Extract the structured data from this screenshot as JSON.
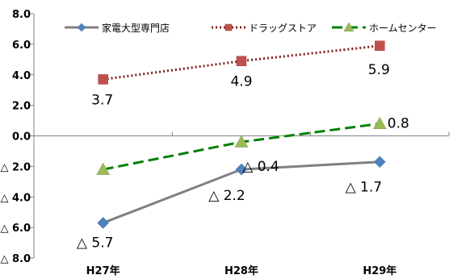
{
  "chart_data": {
    "type": "line",
    "title": "",
    "xlabel": "",
    "ylabel": "",
    "categories": [
      "H27年",
      "H28年",
      "H29年"
    ],
    "ylim": [
      -8,
      8
    ],
    "yticks": [
      8,
      6,
      4,
      2,
      0,
      -2,
      -4,
      -6,
      -8
    ],
    "ytick_labels": [
      "8.0",
      "6.0",
      "4.0",
      "2.0",
      "0.0",
      "△ 2.0",
      "△ 4.0",
      "△ 6.0",
      "△ 8.0"
    ],
    "grid": false,
    "legend_position": "top",
    "series": [
      {
        "name": "家電大型専門店",
        "values": [
          -5.7,
          -2.2,
          -1.7
        ],
        "labels": [
          "△ 5.7",
          "△ 2.2",
          "△ 1.7"
        ],
        "color": "#808080",
        "marker_color": "#4f81bd",
        "marker": "diamond",
        "line_style": "solid"
      },
      {
        "name": "ドラッグストア",
        "values": [
          3.7,
          4.9,
          5.9
        ],
        "labels": [
          "3.7",
          "4.9",
          "5.9"
        ],
        "color": "#7f1f1f",
        "marker_color": "#c0504d",
        "marker": "square",
        "line_style": "dotted"
      },
      {
        "name": "ホームセンター",
        "values": [
          -2.2,
          -0.4,
          0.8
        ],
        "labels": [
          "",
          "△ 0.4",
          "0.8"
        ],
        "color": "#008000",
        "marker_color": "#9bbb59",
        "marker": "triangle",
        "line_style": "dashed"
      }
    ]
  }
}
